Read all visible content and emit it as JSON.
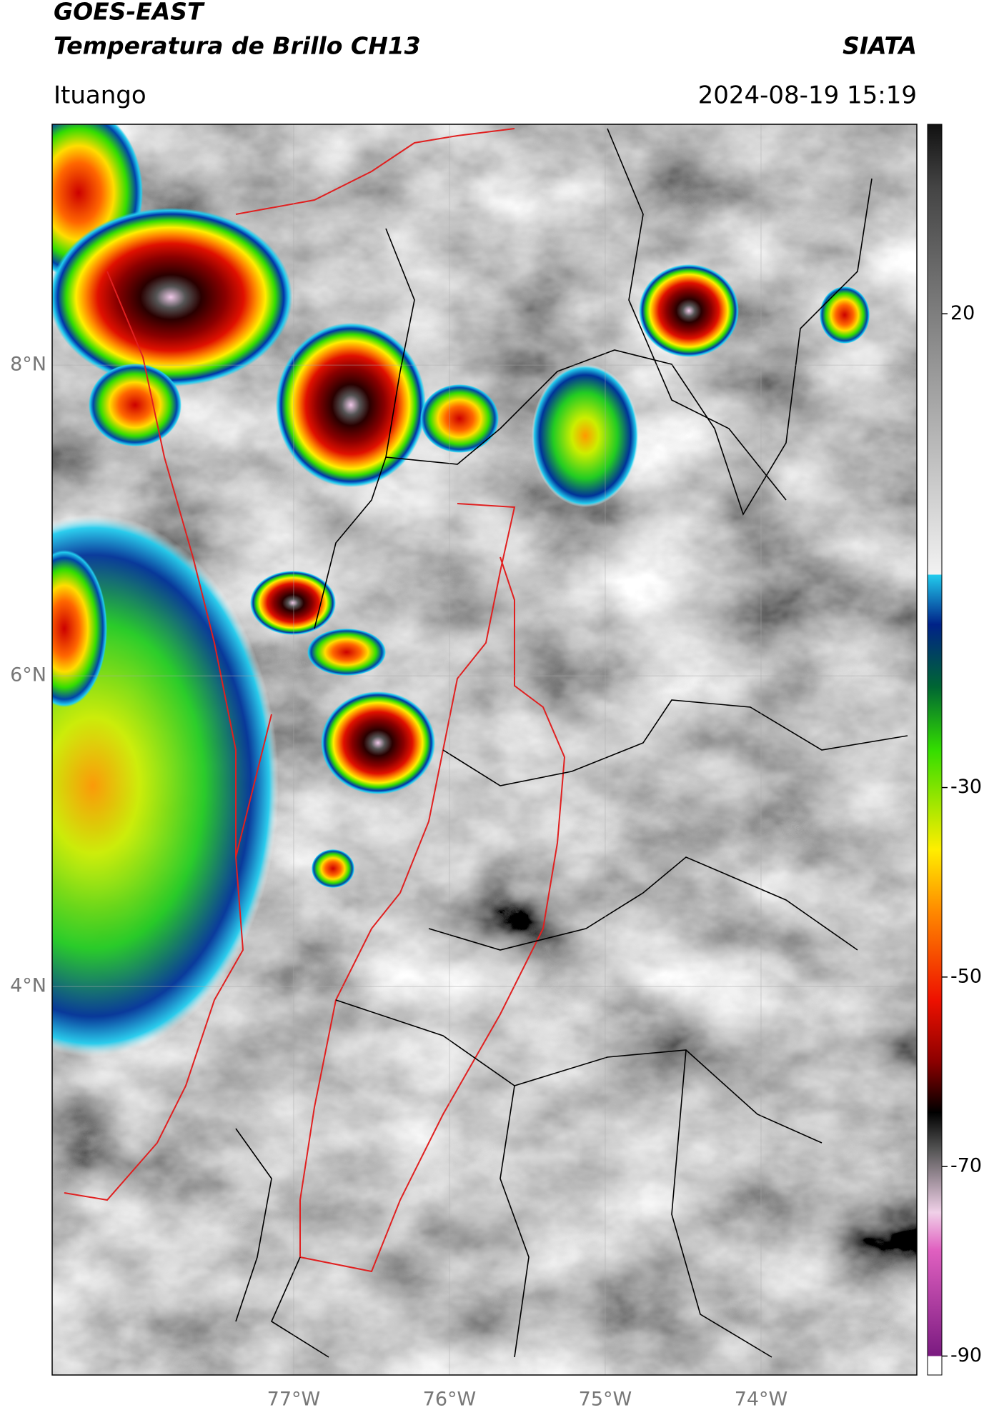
{
  "header": {
    "title": "GOES-EAST",
    "subtitle": "Temperatura de Brillo CH13",
    "source": "SIATA",
    "location": "Ituango",
    "datetime": "2024-08-19 15:19"
  },
  "map": {
    "xlim": [
      -78.55,
      -73.0
    ],
    "ylim": [
      1.5,
      9.55
    ],
    "xticks": [
      {
        "value": -77,
        "label": "77°W"
      },
      {
        "value": -76,
        "label": "76°W"
      },
      {
        "value": -75,
        "label": "75°W"
      },
      {
        "value": -74,
        "label": "74°W"
      }
    ],
    "yticks": [
      {
        "value": 8,
        "label": "8°N"
      },
      {
        "value": 6,
        "label": "6°N"
      },
      {
        "value": 4,
        "label": "4°N"
      }
    ],
    "grid": true
  },
  "colorbar": {
    "lim": [
      -92,
      40
    ],
    "ticks": [
      20,
      -30,
      -50,
      -70,
      -90
    ]
  }
}
